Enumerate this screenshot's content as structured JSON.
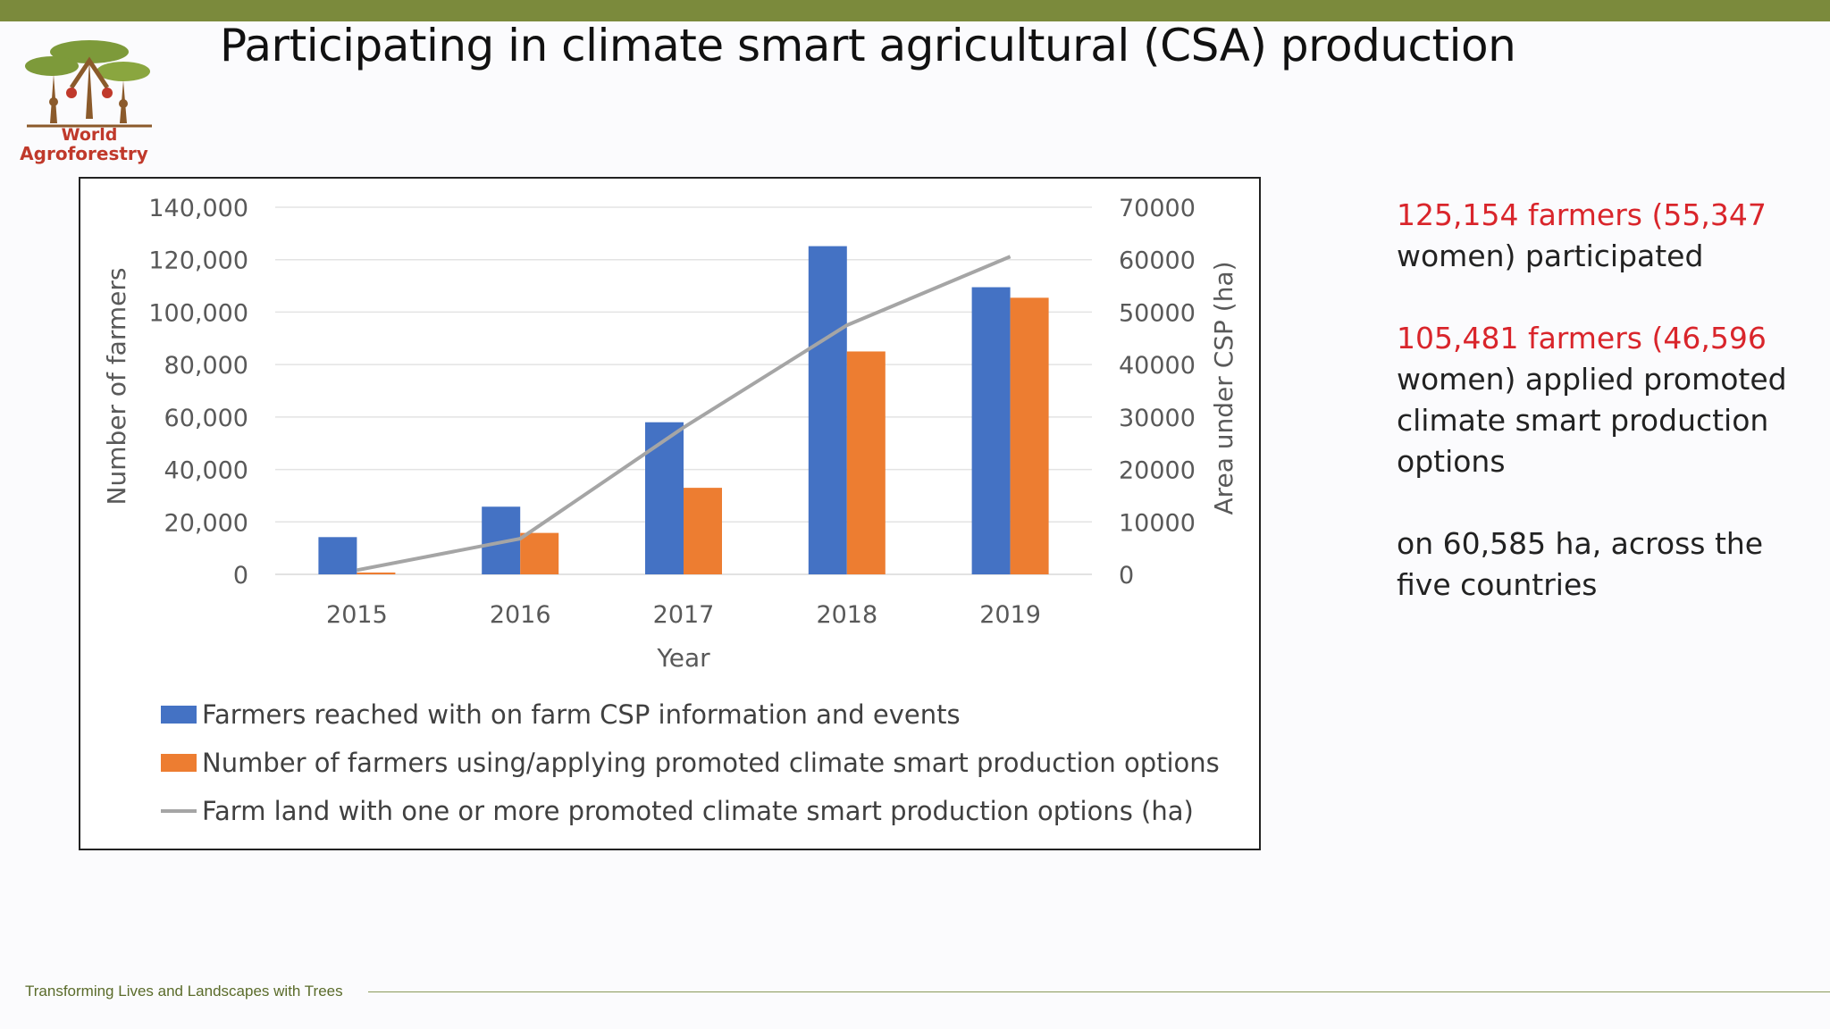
{
  "header": {
    "title": "Participating in climate smart agricultural (CSA) production",
    "logo_text_line1": "World",
    "logo_text_line2": "Agroforestry"
  },
  "chart_data": {
    "type": "bar",
    "categories": [
      "2015",
      "2016",
      "2017",
      "2018",
      "2019"
    ],
    "series": [
      {
        "name": "Farmers reached with on farm CSP  information and events",
        "type": "bar",
        "axis": "left",
        "color": "#4472c4",
        "values": [
          14200,
          25800,
          58000,
          125154,
          109500
        ]
      },
      {
        "name": "Number  of farmers using/applying promoted climate smart production options",
        "type": "bar",
        "axis": "left",
        "color": "#ed7d31",
        "values": [
          700,
          15800,
          33000,
          85000,
          105481
        ]
      },
      {
        "name": "Farm land with one or more promoted climate smart production options (ha)",
        "type": "line",
        "axis": "right",
        "color": "#a5a5a5",
        "values": [
          800,
          6800,
          28000,
          47500,
          60585
        ]
      }
    ],
    "xlabel": "Year",
    "ylabel": "Number of farmers",
    "y2label": "Area under CSP (ha)",
    "ylim": [
      0,
      140000
    ],
    "y2lim": [
      0,
      70000
    ],
    "yticks": [
      "0",
      "20,000",
      "40,000",
      "60,000",
      "80,000",
      "100,000",
      "120,000",
      "140,000"
    ],
    "y2ticks": [
      "0",
      "10000",
      "20000",
      "30000",
      "40000",
      "50000",
      "60000",
      "70000"
    ],
    "grid": true,
    "legend_position": "bottom"
  },
  "side_notes": {
    "note1_red": "125,154 farmers (55,347",
    "note1_black": "women) participated",
    "note2_red": "105,481 farmers (46,596",
    "note2_black": "women) applied promoted climate smart production options",
    "note3": "on 60,585 ha, across the five countries"
  },
  "footer": {
    "tagline": "Transforming Lives and Landscapes with Trees"
  }
}
